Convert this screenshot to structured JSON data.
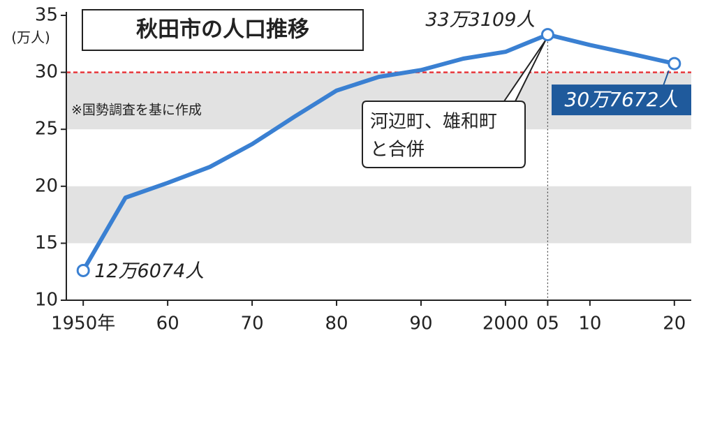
{
  "chart_data": {
    "type": "line",
    "title": "秋田市の人口推移",
    "y_unit": "(万人)",
    "note": "※国勢調査を基に作成",
    "x": [
      1950,
      1955,
      1960,
      1965,
      1970,
      1975,
      1980,
      1985,
      1990,
      1995,
      2000,
      2005,
      2010,
      2015,
      2020
    ],
    "series": [
      {
        "color": "#3a80d2",
        "values": [
          12.6074,
          19.0,
          20.3,
          21.7,
          23.7,
          26.1,
          28.4,
          29.6,
          30.2,
          31.2,
          31.8,
          33.3109,
          32.4,
          31.6,
          30.7672
        ],
        "value_labels": [
          "12万6074人",
          null,
          null,
          null,
          null,
          null,
          null,
          null,
          null,
          null,
          null,
          "33万3109人",
          null,
          null,
          "30万7672人"
        ]
      }
    ],
    "xlim": [
      1948,
      2022
    ],
    "ylim": [
      10,
      35
    ],
    "xticks": [
      {
        "value": 1950,
        "label": "1950年"
      },
      {
        "value": 1960,
        "label": "60"
      },
      {
        "value": 1970,
        "label": "70"
      },
      {
        "value": 1980,
        "label": "80"
      },
      {
        "value": 1990,
        "label": "90"
      },
      2000,
      {
        "value": 2005,
        "label": "05"
      },
      {
        "value": 2010,
        "label": "10"
      },
      {
        "value": 2020,
        "label": "20"
      }
    ],
    "yticks": [
      10,
      15,
      20,
      25,
      30,
      35
    ],
    "bands": [
      [
        15,
        20
      ],
      [
        25,
        30
      ]
    ],
    "band_color": "#e2e2e2",
    "ref_line": {
      "value": 30,
      "color": "#e8383d"
    },
    "annotation": {
      "x": 2005,
      "lines": [
        "河辺町、雄和町",
        "と合併"
      ]
    }
  }
}
